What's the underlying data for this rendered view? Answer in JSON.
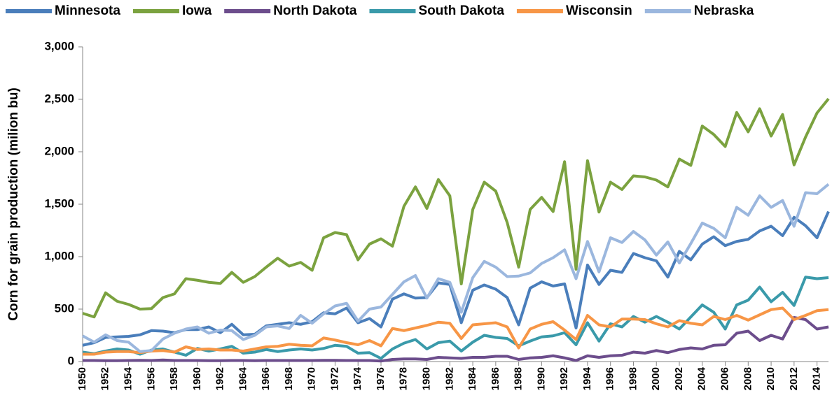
{
  "chart_data": {
    "type": "line",
    "y_label": "Corn for grain production (milion bu)",
    "x": [
      1950,
      1951,
      1952,
      1953,
      1954,
      1955,
      1956,
      1957,
      1958,
      1959,
      1960,
      1961,
      1962,
      1963,
      1964,
      1965,
      1966,
      1967,
      1968,
      1969,
      1970,
      1971,
      1972,
      1973,
      1974,
      1975,
      1976,
      1977,
      1978,
      1979,
      1980,
      1981,
      1982,
      1983,
      1984,
      1985,
      1986,
      1987,
      1988,
      1989,
      1990,
      1991,
      1992,
      1993,
      1994,
      1995,
      1996,
      1997,
      1998,
      1999,
      2000,
      2001,
      2002,
      2003,
      2004,
      2005,
      2006,
      2007,
      2008,
      2009,
      2010,
      2011,
      2012,
      2013,
      2014,
      2015
    ],
    "xlim": [
      1950,
      2015
    ],
    "xticks": [
      1950,
      1952,
      1954,
      1956,
      1958,
      1960,
      1962,
      1964,
      1966,
      1968,
      1970,
      1972,
      1974,
      1976,
      1978,
      1980,
      1982,
      1984,
      1986,
      1988,
      1990,
      1992,
      1994,
      1996,
      1998,
      2000,
      2002,
      2004,
      2006,
      2008,
      2010,
      2012,
      2014
    ],
    "ylim": [
      0,
      3000
    ],
    "yticks": [
      0,
      500,
      {
        "value": 1000,
        "label": "1,000"
      },
      {
        "value": 1500,
        "label": "1,500"
      },
      {
        "value": 2000,
        "label": "2,000"
      },
      {
        "value": 2500,
        "label": "2,500"
      },
      {
        "value": 3000,
        "label": "3,000"
      }
    ],
    "grid": false,
    "legend": "top",
    "series": [
      {
        "name": "Minnesota",
        "color": "#4a7ebb",
        "values": [
          155,
          180,
          230,
          235,
          240,
          255,
          295,
          290,
          275,
          305,
          305,
          330,
          275,
          355,
          255,
          260,
          340,
          355,
          370,
          355,
          380,
          465,
          455,
          510,
          370,
          410,
          330,
          595,
          645,
          605,
          610,
          750,
          735,
          370,
          680,
          730,
          690,
          610,
          350,
          700,
          760,
          720,
          740,
          320,
          920,
          735,
          870,
          850,
          1030,
          990,
          960,
          805,
          1050,
          970,
          1120,
          1190,
          1105,
          1145,
          1165,
          1245,
          1290,
          1200,
          1375,
          1295,
          1180,
          1430
        ]
      },
      {
        "name": "Iowa",
        "color": "#7ba23f",
        "values": [
          460,
          425,
          655,
          575,
          545,
          500,
          505,
          610,
          645,
          790,
          775,
          755,
          745,
          850,
          755,
          810,
          900,
          985,
          910,
          945,
          870,
          1180,
          1230,
          1210,
          970,
          1120,
          1170,
          1100,
          1480,
          1665,
          1460,
          1735,
          1580,
          740,
          1450,
          1710,
          1625,
          1325,
          900,
          1450,
          1565,
          1430,
          1905,
          880,
          1915,
          1425,
          1710,
          1640,
          1770,
          1760,
          1730,
          1665,
          1930,
          1870,
          2245,
          2165,
          2050,
          2375,
          2190,
          2410,
          2150,
          2355,
          1875,
          2140,
          2370,
          2505
        ]
      },
      {
        "name": "North Dakota",
        "color": "#6c4d8c",
        "values": [
          10,
          10,
          8,
          8,
          10,
          12,
          10,
          15,
          10,
          10,
          10,
          8,
          8,
          10,
          10,
          8,
          10,
          10,
          10,
          10,
          10,
          12,
          12,
          10,
          10,
          10,
          5,
          20,
          25,
          25,
          20,
          40,
          35,
          30,
          40,
          40,
          50,
          50,
          20,
          35,
          40,
          55,
          35,
          10,
          55,
          40,
          55,
          60,
          90,
          80,
          105,
          85,
          115,
          130,
          120,
          155,
          160,
          270,
          290,
          200,
          250,
          215,
          420,
          400,
          310,
          330
        ]
      },
      {
        "name": "South Dakota",
        "color": "#3a9aaa",
        "values": [
          90,
          75,
          100,
          120,
          110,
          70,
          110,
          120,
          90,
          60,
          125,
          100,
          120,
          145,
          80,
          90,
          115,
          95,
          110,
          120,
          110,
          125,
          155,
          145,
          80,
          85,
          30,
          120,
          175,
          210,
          120,
          180,
          195,
          100,
          185,
          250,
          230,
          220,
          150,
          195,
          235,
          245,
          275,
          160,
          370,
          195,
          360,
          330,
          430,
          375,
          430,
          375,
          310,
          425,
          540,
          470,
          310,
          540,
          585,
          710,
          570,
          660,
          535,
          805,
          790,
          800
        ]
      },
      {
        "name": "Wisconsin",
        "color": "#f79646",
        "values": [
          70,
          70,
          90,
          95,
          95,
          85,
          100,
          105,
          90,
          140,
          115,
          120,
          110,
          110,
          100,
          120,
          140,
          145,
          165,
          155,
          150,
          225,
          205,
          180,
          160,
          200,
          150,
          315,
          295,
          320,
          345,
          375,
          365,
          220,
          350,
          360,
          370,
          330,
          130,
          310,
          355,
          380,
          300,
          210,
          440,
          350,
          330,
          405,
          405,
          400,
          360,
          330,
          390,
          365,
          350,
          430,
          400,
          440,
          395,
          445,
          495,
          510,
          400,
          440,
          485,
          495
        ]
      },
      {
        "name": "Nebraska",
        "color": "#9bb7de",
        "values": [
          245,
          185,
          255,
          200,
          185,
          95,
          105,
          215,
          270,
          310,
          330,
          270,
          300,
          295,
          210,
          250,
          330,
          340,
          315,
          440,
          365,
          455,
          530,
          555,
          385,
          500,
          520,
          640,
          760,
          820,
          605,
          790,
          755,
          470,
          800,
          955,
          900,
          810,
          815,
          845,
          935,
          990,
          1065,
          790,
          1145,
          855,
          1180,
          1135,
          1240,
          1160,
          1015,
          1140,
          940,
          1125,
          1320,
          1270,
          1180,
          1470,
          1395,
          1580,
          1470,
          1535,
          1290,
          1610,
          1600,
          1690
        ]
      }
    ]
  }
}
